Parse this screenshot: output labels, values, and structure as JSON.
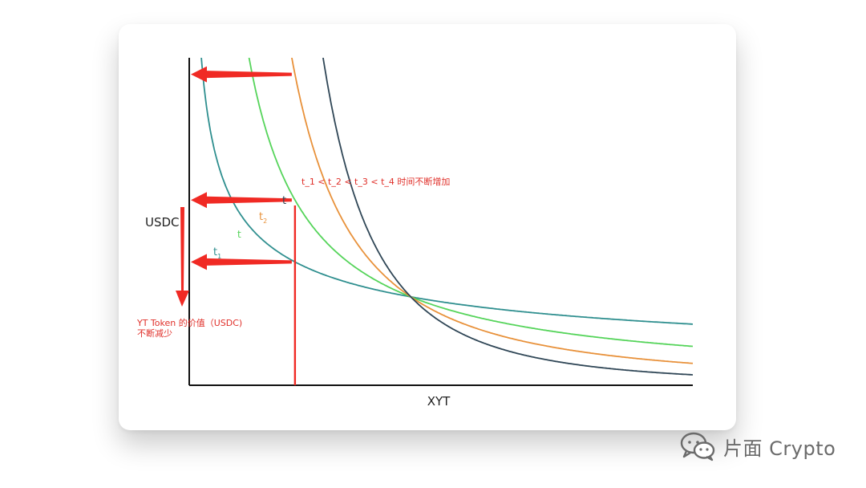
{
  "chart_data": {
    "type": "line",
    "xlabel": "XYT",
    "ylabel": "USDC",
    "grid": false,
    "annotation_main": "t_1 < t_2 < t_3 < t_4    时间不断增加",
    "annotation_result_line1": "YT Token 的价值（USDC)",
    "annotation_result_line2": "不断减少",
    "curve_labels": [
      "t",
      "t",
      "t",
      "t"
    ],
    "curve_label_subscripts": [
      "1",
      "",
      "2",
      ""
    ],
    "series_colors": [
      "#2f8f8f",
      "#55d45a",
      "#e8913a",
      "#2f4656"
    ],
    "series_k": [
      0.45,
      1.0,
      1.7,
      2.6
    ],
    "intersection_x": 0.44,
    "marker_x": 0.21,
    "xlim": [
      0,
      1
    ],
    "ylim": [
      0,
      1
    ],
    "accent_color": "#f02a24"
  },
  "watermark": {
    "text": "片面 Crypto",
    "icon": "wechat-icon"
  }
}
